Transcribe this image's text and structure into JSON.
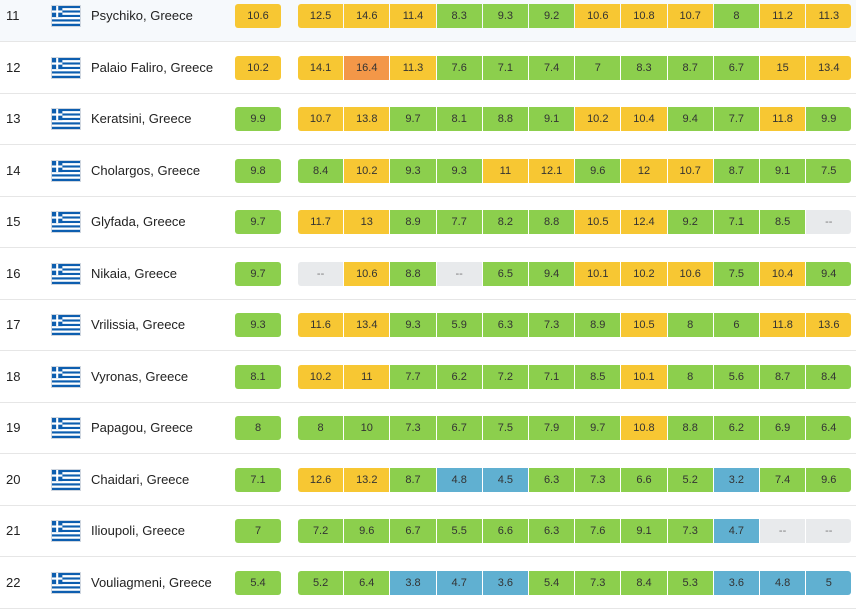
{
  "colors": {
    "green": "#8ccf4d",
    "yellow": "#f7c733",
    "orange": "#f39748",
    "blue": "#60b0d1",
    "gray": "#e8eaec"
  },
  "flag_icon": "greece-flag-icon",
  "rows": [
    {
      "rank": "11",
      "city": "Psychiko, Greece",
      "avg": {
        "v": "10.6",
        "c": "yellow"
      },
      "months": [
        [
          "12.5",
          "yellow"
        ],
        [
          "14.6",
          "yellow"
        ],
        [
          "11.4",
          "yellow"
        ],
        [
          "8.3",
          "green"
        ],
        [
          "9.3",
          "green"
        ],
        [
          "9.2",
          "green"
        ],
        [
          "10.6",
          "yellow"
        ],
        [
          "10.8",
          "yellow"
        ],
        [
          "10.7",
          "yellow"
        ],
        [
          "8",
          "green"
        ],
        [
          "11.2",
          "yellow"
        ],
        [
          "11.3",
          "yellow"
        ]
      ]
    },
    {
      "rank": "12",
      "city": "Palaio Faliro, Greece",
      "avg": {
        "v": "10.2",
        "c": "yellow"
      },
      "months": [
        [
          "14.1",
          "yellow"
        ],
        [
          "16.4",
          "orange"
        ],
        [
          "11.3",
          "yellow"
        ],
        [
          "7.6",
          "green"
        ],
        [
          "7.1",
          "green"
        ],
        [
          "7.4",
          "green"
        ],
        [
          "7",
          "green"
        ],
        [
          "8.3",
          "green"
        ],
        [
          "8.7",
          "green"
        ],
        [
          "6.7",
          "green"
        ],
        [
          "15",
          "yellow"
        ],
        [
          "13.4",
          "yellow"
        ]
      ]
    },
    {
      "rank": "13",
      "city": "Keratsini, Greece",
      "avg": {
        "v": "9.9",
        "c": "green"
      },
      "months": [
        [
          "10.7",
          "yellow"
        ],
        [
          "13.8",
          "yellow"
        ],
        [
          "9.7",
          "green"
        ],
        [
          "8.1",
          "green"
        ],
        [
          "8.8",
          "green"
        ],
        [
          "9.1",
          "green"
        ],
        [
          "10.2",
          "yellow"
        ],
        [
          "10.4",
          "yellow"
        ],
        [
          "9.4",
          "green"
        ],
        [
          "7.7",
          "green"
        ],
        [
          "11.8",
          "yellow"
        ],
        [
          "9.9",
          "green"
        ]
      ]
    },
    {
      "rank": "14",
      "city": "Cholargos, Greece",
      "avg": {
        "v": "9.8",
        "c": "green"
      },
      "months": [
        [
          "8.4",
          "green"
        ],
        [
          "10.2",
          "yellow"
        ],
        [
          "9.3",
          "green"
        ],
        [
          "9.3",
          "green"
        ],
        [
          "11",
          "yellow"
        ],
        [
          "12.1",
          "yellow"
        ],
        [
          "9.6",
          "green"
        ],
        [
          "12",
          "yellow"
        ],
        [
          "10.7",
          "yellow"
        ],
        [
          "8.7",
          "green"
        ],
        [
          "9.1",
          "green"
        ],
        [
          "7.5",
          "green"
        ]
      ]
    },
    {
      "rank": "15",
      "city": "Glyfada, Greece",
      "avg": {
        "v": "9.7",
        "c": "green"
      },
      "months": [
        [
          "11.7",
          "yellow"
        ],
        [
          "13",
          "yellow"
        ],
        [
          "8.9",
          "green"
        ],
        [
          "7.7",
          "green"
        ],
        [
          "8.2",
          "green"
        ],
        [
          "8.8",
          "green"
        ],
        [
          "10.5",
          "yellow"
        ],
        [
          "12.4",
          "yellow"
        ],
        [
          "9.2",
          "green"
        ],
        [
          "7.1",
          "green"
        ],
        [
          "8.5",
          "green"
        ],
        [
          "--",
          "gray"
        ]
      ]
    },
    {
      "rank": "16",
      "city": "Nikaia, Greece",
      "avg": {
        "v": "9.7",
        "c": "green"
      },
      "months": [
        [
          "--",
          "gray"
        ],
        [
          "10.6",
          "yellow"
        ],
        [
          "8.8",
          "green"
        ],
        [
          "--",
          "gray"
        ],
        [
          "6.5",
          "green"
        ],
        [
          "9.4",
          "green"
        ],
        [
          "10.1",
          "yellow"
        ],
        [
          "10.2",
          "yellow"
        ],
        [
          "10.6",
          "yellow"
        ],
        [
          "7.5",
          "green"
        ],
        [
          "10.4",
          "yellow"
        ],
        [
          "9.4",
          "green"
        ]
      ]
    },
    {
      "rank": "17",
      "city": "Vrilissia, Greece",
      "avg": {
        "v": "9.3",
        "c": "green"
      },
      "months": [
        [
          "11.6",
          "yellow"
        ],
        [
          "13.4",
          "yellow"
        ],
        [
          "9.3",
          "green"
        ],
        [
          "5.9",
          "green"
        ],
        [
          "6.3",
          "green"
        ],
        [
          "7.3",
          "green"
        ],
        [
          "8.9",
          "green"
        ],
        [
          "10.5",
          "yellow"
        ],
        [
          "8",
          "green"
        ],
        [
          "6",
          "green"
        ],
        [
          "11.8",
          "yellow"
        ],
        [
          "13.6",
          "yellow"
        ]
      ]
    },
    {
      "rank": "18",
      "city": "Vyronas, Greece",
      "avg": {
        "v": "8.1",
        "c": "green"
      },
      "months": [
        [
          "10.2",
          "yellow"
        ],
        [
          "11",
          "yellow"
        ],
        [
          "7.7",
          "green"
        ],
        [
          "6.2",
          "green"
        ],
        [
          "7.2",
          "green"
        ],
        [
          "7.1",
          "green"
        ],
        [
          "8.5",
          "green"
        ],
        [
          "10.1",
          "yellow"
        ],
        [
          "8",
          "green"
        ],
        [
          "5.6",
          "green"
        ],
        [
          "8.7",
          "green"
        ],
        [
          "8.4",
          "green"
        ]
      ]
    },
    {
      "rank": "19",
      "city": "Papagou, Greece",
      "avg": {
        "v": "8",
        "c": "green"
      },
      "months": [
        [
          "8",
          "green"
        ],
        [
          "10",
          "green"
        ],
        [
          "7.3",
          "green"
        ],
        [
          "6.7",
          "green"
        ],
        [
          "7.5",
          "green"
        ],
        [
          "7.9",
          "green"
        ],
        [
          "9.7",
          "green"
        ],
        [
          "10.8",
          "yellow"
        ],
        [
          "8.8",
          "green"
        ],
        [
          "6.2",
          "green"
        ],
        [
          "6.9",
          "green"
        ],
        [
          "6.4",
          "green"
        ]
      ]
    },
    {
      "rank": "20",
      "city": "Chaidari, Greece",
      "avg": {
        "v": "7.1",
        "c": "green"
      },
      "months": [
        [
          "12.6",
          "yellow"
        ],
        [
          "13.2",
          "yellow"
        ],
        [
          "8.7",
          "green"
        ],
        [
          "4.8",
          "blue"
        ],
        [
          "4.5",
          "blue"
        ],
        [
          "6.3",
          "green"
        ],
        [
          "7.3",
          "green"
        ],
        [
          "6.6",
          "green"
        ],
        [
          "5.2",
          "green"
        ],
        [
          "3.2",
          "blue"
        ],
        [
          "7.4",
          "green"
        ],
        [
          "9.6",
          "green"
        ]
      ]
    },
    {
      "rank": "21",
      "city": "Ilioupoli, Greece",
      "avg": {
        "v": "7",
        "c": "green"
      },
      "months": [
        [
          "7.2",
          "green"
        ],
        [
          "9.6",
          "green"
        ],
        [
          "6.7",
          "green"
        ],
        [
          "5.5",
          "green"
        ],
        [
          "6.6",
          "green"
        ],
        [
          "6.3",
          "green"
        ],
        [
          "7.6",
          "green"
        ],
        [
          "9.1",
          "green"
        ],
        [
          "7.3",
          "green"
        ],
        [
          "4.7",
          "blue"
        ],
        [
          "--",
          "gray"
        ],
        [
          "--",
          "gray"
        ]
      ]
    },
    {
      "rank": "22",
      "city": "Vouliagmeni, Greece",
      "avg": {
        "v": "5.4",
        "c": "green"
      },
      "months": [
        [
          "5.2",
          "green"
        ],
        [
          "6.4",
          "green"
        ],
        [
          "3.8",
          "blue"
        ],
        [
          "4.7",
          "blue"
        ],
        [
          "3.6",
          "blue"
        ],
        [
          "5.4",
          "green"
        ],
        [
          "7.3",
          "green"
        ],
        [
          "8.4",
          "green"
        ],
        [
          "5.3",
          "green"
        ],
        [
          "3.6",
          "blue"
        ],
        [
          "4.8",
          "blue"
        ],
        [
          "5",
          "blue"
        ]
      ]
    }
  ]
}
